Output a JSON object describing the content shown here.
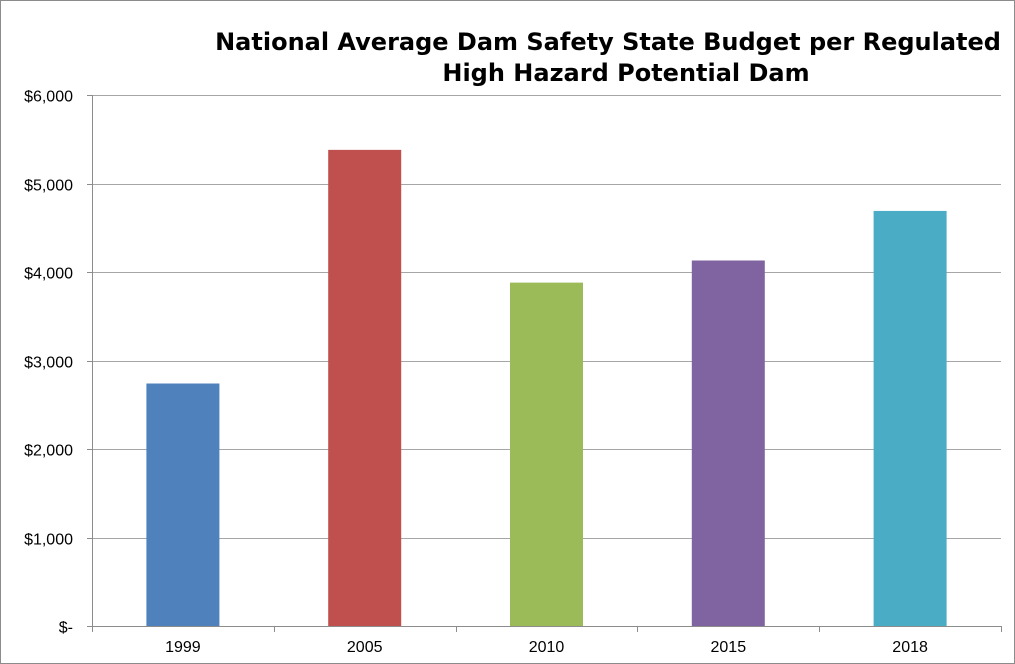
{
  "chart_data": {
    "type": "bar",
    "title": "National Average Dam Safety State Budget per Regulated High Hazard Potential Dam",
    "title_lines": [
      "National Average Dam Safety State Budget per Regulated",
      "High Hazard Potential Dam"
    ],
    "xlabel": "",
    "ylabel": "",
    "categories": [
      "1999",
      "2005",
      "2010",
      "2015",
      "2018"
    ],
    "values": [
      2740,
      5380,
      3880,
      4130,
      4690
    ],
    "bar_colors": [
      "#4f81bd",
      "#c0504d",
      "#9bbb59",
      "#8064a2",
      "#4bacc6"
    ],
    "ylim": [
      0,
      6000
    ],
    "yticks": [
      0,
      1000,
      2000,
      3000,
      4000,
      5000,
      6000
    ],
    "ytick_labels": [
      "$-",
      "$1,000",
      "$2,000",
      "$3,000",
      "$4,000",
      "$5,000",
      "$6,000"
    ],
    "grid": true,
    "legend": "none"
  }
}
